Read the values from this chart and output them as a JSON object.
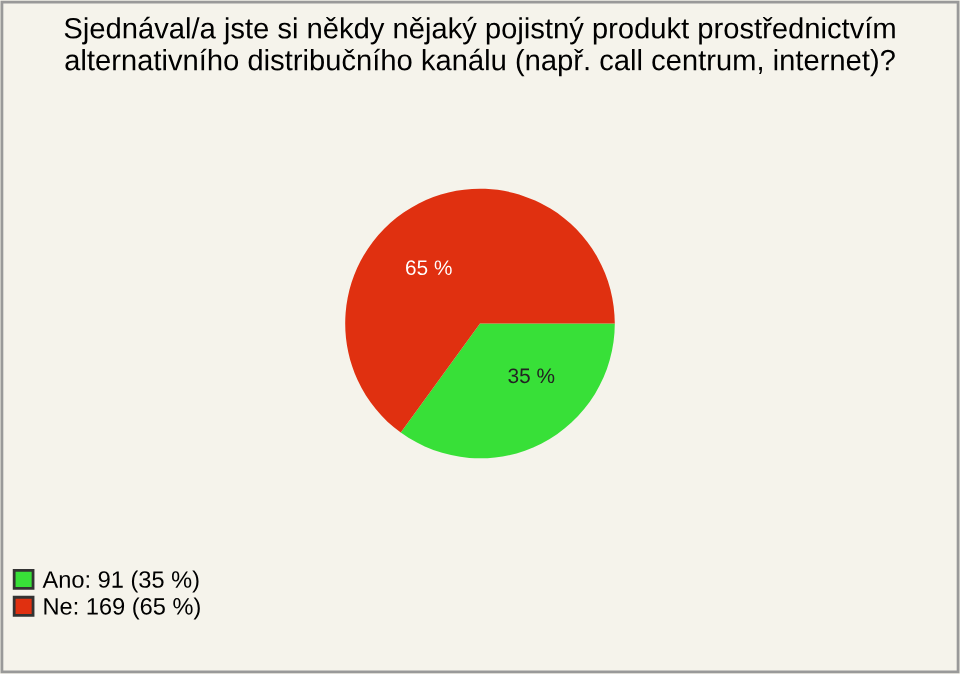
{
  "chart_data": {
    "type": "pie",
    "title": "Sjednával/a jste si někdy nějaký pojistný produkt prostřednictvím\nalternativního distribučního kanálu (např. call centrum, internet)?",
    "categories": [
      "Ano: 91 (35 %)",
      "Ne: 169 (65 %)"
    ],
    "values": [
      35,
      65
    ],
    "value_labels": [
      "35 %",
      "65 %"
    ],
    "colors": [
      "#38e038",
      "#e03010"
    ],
    "legend": "bottom left"
  }
}
